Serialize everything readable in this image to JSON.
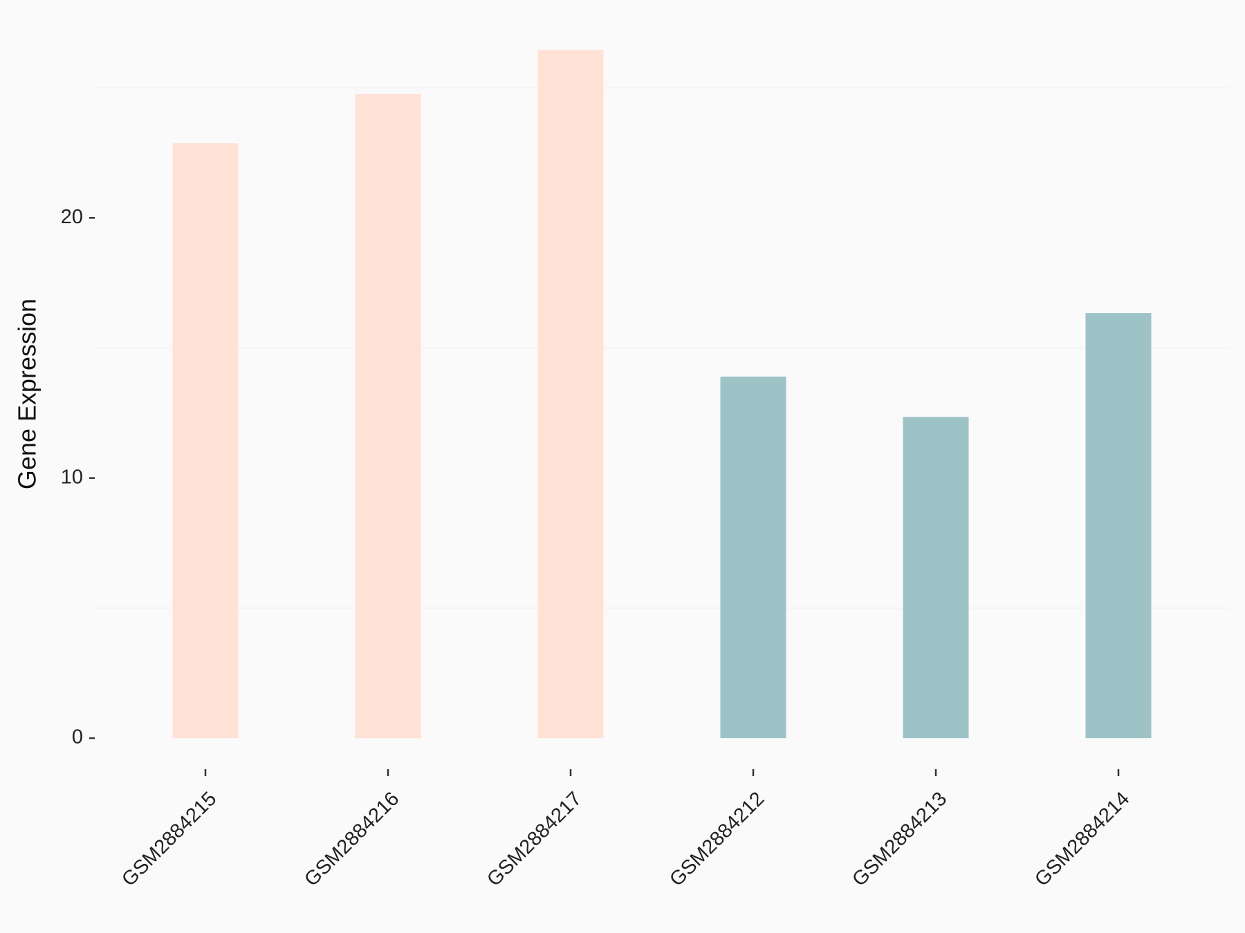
{
  "chart_data": {
    "type": "bar",
    "y_label": "Gene Expression",
    "categories": [
      "GSM2884215",
      "GSM2884216",
      "GSM2884217",
      "GSM2884212",
      "GSM2884213",
      "GSM2884214"
    ],
    "values": [
      22.87,
      24.76,
      26.46,
      13.9,
      12.35,
      16.34
    ],
    "colors": [
      "#ffe1d6",
      "#ffe1d6",
      "#ffe1d6",
      "#9dc3c7",
      "#9dc3c7",
      "#9dc3c7"
    ],
    "ylim": [
      -1.3,
      27.5
    ],
    "yticks": [
      0,
      10,
      20
    ],
    "minor_grid": [
      5,
      15,
      25
    ],
    "background": "#fafafa"
  }
}
